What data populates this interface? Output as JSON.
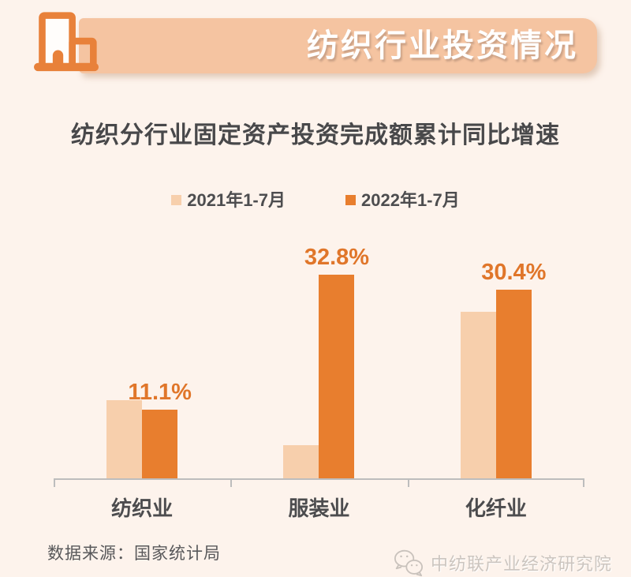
{
  "header": {
    "banner_title": "纺织行业投资情况",
    "banner_color": "#f5c4a1",
    "accent_color": "#e8813a",
    "icons": {
      "building": "building-icon"
    }
  },
  "chart_data": {
    "type": "bar",
    "title": "纺织分行业固定资产投资完成额累计同比增速",
    "categories": [
      "纺织业",
      "服装业",
      "化纤业"
    ],
    "series": [
      {
        "name": "2021年1-7月",
        "color": "#f7cfac",
        "values": [
          12.6,
          5.3,
          26.8
        ],
        "value_labels": [
          "",
          "",
          ""
        ]
      },
      {
        "name": "2022年1-7月",
        "color": "#e87e2e",
        "values": [
          11.1,
          32.8,
          30.4
        ],
        "value_labels": [
          "11.1%",
          "32.8%",
          "30.4%"
        ]
      }
    ],
    "unit": "%",
    "ylim": [
      0,
      36
    ],
    "grid": false,
    "legend_position": "top",
    "axis_color": "#bdbdbd",
    "value_label_color": "#e0762a"
  },
  "footer": {
    "source": "数据来源：国家统计局",
    "watermark": "中纺联产业经济研究院",
    "icons": {
      "watermark_logo": "wechat-icon"
    }
  }
}
